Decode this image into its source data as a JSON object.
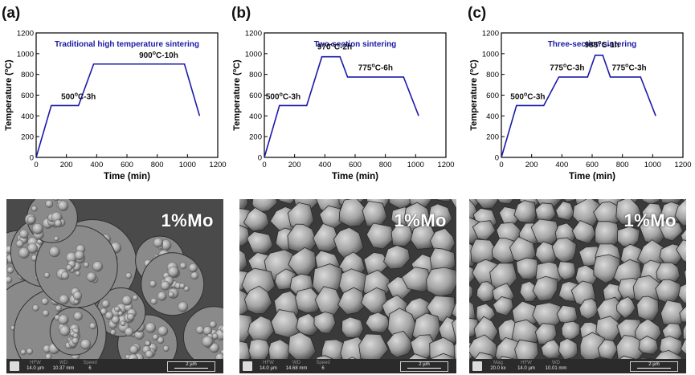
{
  "chart_data": [
    {
      "type": "line",
      "panel_label": "(a)",
      "title": "Traditional high temperature sintering",
      "xlabel": "Time (min)",
      "ylabel": "Temperature (°C)",
      "xlim": [
        0,
        1200
      ],
      "ylim": [
        0,
        1200
      ],
      "xticks": [
        0,
        200,
        400,
        600,
        800,
        1000,
        1200
      ],
      "yticks": [
        0,
        200,
        400,
        600,
        800,
        1000,
        1200
      ],
      "x": [
        0,
        100,
        280,
        380,
        980,
        1080
      ],
      "y": [
        0,
        500,
        500,
        900,
        900,
        400
      ],
      "color": "#1a1aa8",
      "annotations": [
        {
          "text": "500°C-3h",
          "x": 165,
          "y": 560
        },
        {
          "text": "900°C-10h",
          "x": 680,
          "y": 960
        }
      ]
    },
    {
      "type": "line",
      "panel_label": "(b)",
      "title": "Two-section sintering",
      "xlabel": "Time (min)",
      "ylabel": "Temperature (°C)",
      "xlim": [
        0,
        1200
      ],
      "ylim": [
        0,
        1200
      ],
      "xticks": [
        0,
        200,
        400,
        600,
        800,
        1000,
        1200
      ],
      "yticks": [
        0,
        200,
        400,
        600,
        800,
        1000,
        1200
      ],
      "x": [
        0,
        100,
        280,
        380,
        500,
        550,
        920,
        1020
      ],
      "y": [
        0,
        500,
        500,
        970,
        970,
        775,
        775,
        400
      ],
      "color": "#1a1aa8",
      "annotations": [
        {
          "text": "500°C-3h",
          "x": 10,
          "y": 560
        },
        {
          "text": "970°C-2h",
          "x": 350,
          "y": 1040
        },
        {
          "text": "775°C-6h",
          "x": 620,
          "y": 840
        }
      ]
    },
    {
      "type": "line",
      "panel_label": "(c)",
      "title": "Three-section sintering",
      "xlabel": "Time (min)",
      "ylabel": "Temperature (°C)",
      "xlim": [
        0,
        1200
      ],
      "ylim": [
        0,
        1200
      ],
      "xticks": [
        0,
        200,
        400,
        600,
        800,
        1000,
        1200
      ],
      "yticks": [
        0,
        200,
        400,
        600,
        800,
        1000,
        1200
      ],
      "x": [
        0,
        100,
        280,
        380,
        570,
        620,
        670,
        720,
        920,
        1020
      ],
      "y": [
        0,
        500,
        500,
        775,
        775,
        985,
        985,
        775,
        775,
        400
      ],
      "color": "#1a1aa8",
      "annotations": [
        {
          "text": "500°C-3h",
          "x": 60,
          "y": 560
        },
        {
          "text": "775°C-3h",
          "x": 320,
          "y": 840
        },
        {
          "text": "985°C-1h",
          "x": 550,
          "y": 1060
        },
        {
          "text": "775°C-3h",
          "x": 730,
          "y": 840
        }
      ]
    }
  ],
  "sem_images": [
    {
      "label": "1%Mo",
      "hfw": "14.0 µm",
      "wd": "10.37 mm",
      "speed": "6",
      "scale": "2 µm",
      "mag": ""
    },
    {
      "label": "1%Mo",
      "hfw": "14.0 µm",
      "wd": "14.68 mm",
      "speed": "6",
      "scale": "2 µm",
      "mag": ""
    },
    {
      "label": "1%Mo",
      "hfw": "14.0 µm",
      "wd": "10.01 mm",
      "speed": "",
      "scale": "2 µm",
      "mag": "20.0 kx"
    }
  ],
  "infobar_labels": {
    "hfw": "HFW",
    "wd": "WD",
    "speed": "Speed",
    "mag": "Mag"
  }
}
